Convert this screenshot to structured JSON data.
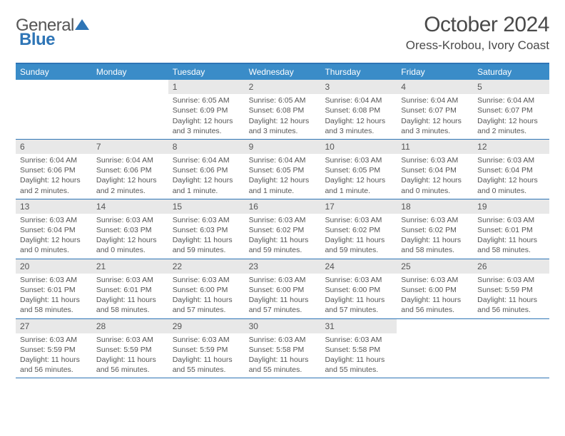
{
  "logo": {
    "text1": "General",
    "text2": "Blue"
  },
  "title": "October 2024",
  "location": "Oress-Krobou, Ivory Coast",
  "colors": {
    "header_bg": "#3a8cc8",
    "border": "#2e75b6",
    "daynum_bg": "#e8e8e8",
    "text": "#555555"
  },
  "day_names": [
    "Sunday",
    "Monday",
    "Tuesday",
    "Wednesday",
    "Thursday",
    "Friday",
    "Saturday"
  ],
  "weeks": [
    [
      {
        "n": "",
        "sr": "",
        "ss": "",
        "dl": ""
      },
      {
        "n": "",
        "sr": "",
        "ss": "",
        "dl": ""
      },
      {
        "n": "1",
        "sr": "Sunrise: 6:05 AM",
        "ss": "Sunset: 6:09 PM",
        "dl": "Daylight: 12 hours and 3 minutes."
      },
      {
        "n": "2",
        "sr": "Sunrise: 6:05 AM",
        "ss": "Sunset: 6:08 PM",
        "dl": "Daylight: 12 hours and 3 minutes."
      },
      {
        "n": "3",
        "sr": "Sunrise: 6:04 AM",
        "ss": "Sunset: 6:08 PM",
        "dl": "Daylight: 12 hours and 3 minutes."
      },
      {
        "n": "4",
        "sr": "Sunrise: 6:04 AM",
        "ss": "Sunset: 6:07 PM",
        "dl": "Daylight: 12 hours and 3 minutes."
      },
      {
        "n": "5",
        "sr": "Sunrise: 6:04 AM",
        "ss": "Sunset: 6:07 PM",
        "dl": "Daylight: 12 hours and 2 minutes."
      }
    ],
    [
      {
        "n": "6",
        "sr": "Sunrise: 6:04 AM",
        "ss": "Sunset: 6:06 PM",
        "dl": "Daylight: 12 hours and 2 minutes."
      },
      {
        "n": "7",
        "sr": "Sunrise: 6:04 AM",
        "ss": "Sunset: 6:06 PM",
        "dl": "Daylight: 12 hours and 2 minutes."
      },
      {
        "n": "8",
        "sr": "Sunrise: 6:04 AM",
        "ss": "Sunset: 6:06 PM",
        "dl": "Daylight: 12 hours and 1 minute."
      },
      {
        "n": "9",
        "sr": "Sunrise: 6:04 AM",
        "ss": "Sunset: 6:05 PM",
        "dl": "Daylight: 12 hours and 1 minute."
      },
      {
        "n": "10",
        "sr": "Sunrise: 6:03 AM",
        "ss": "Sunset: 6:05 PM",
        "dl": "Daylight: 12 hours and 1 minute."
      },
      {
        "n": "11",
        "sr": "Sunrise: 6:03 AM",
        "ss": "Sunset: 6:04 PM",
        "dl": "Daylight: 12 hours and 0 minutes."
      },
      {
        "n": "12",
        "sr": "Sunrise: 6:03 AM",
        "ss": "Sunset: 6:04 PM",
        "dl": "Daylight: 12 hours and 0 minutes."
      }
    ],
    [
      {
        "n": "13",
        "sr": "Sunrise: 6:03 AM",
        "ss": "Sunset: 6:04 PM",
        "dl": "Daylight: 12 hours and 0 minutes."
      },
      {
        "n": "14",
        "sr": "Sunrise: 6:03 AM",
        "ss": "Sunset: 6:03 PM",
        "dl": "Daylight: 12 hours and 0 minutes."
      },
      {
        "n": "15",
        "sr": "Sunrise: 6:03 AM",
        "ss": "Sunset: 6:03 PM",
        "dl": "Daylight: 11 hours and 59 minutes."
      },
      {
        "n": "16",
        "sr": "Sunrise: 6:03 AM",
        "ss": "Sunset: 6:02 PM",
        "dl": "Daylight: 11 hours and 59 minutes."
      },
      {
        "n": "17",
        "sr": "Sunrise: 6:03 AM",
        "ss": "Sunset: 6:02 PM",
        "dl": "Daylight: 11 hours and 59 minutes."
      },
      {
        "n": "18",
        "sr": "Sunrise: 6:03 AM",
        "ss": "Sunset: 6:02 PM",
        "dl": "Daylight: 11 hours and 58 minutes."
      },
      {
        "n": "19",
        "sr": "Sunrise: 6:03 AM",
        "ss": "Sunset: 6:01 PM",
        "dl": "Daylight: 11 hours and 58 minutes."
      }
    ],
    [
      {
        "n": "20",
        "sr": "Sunrise: 6:03 AM",
        "ss": "Sunset: 6:01 PM",
        "dl": "Daylight: 11 hours and 58 minutes."
      },
      {
        "n": "21",
        "sr": "Sunrise: 6:03 AM",
        "ss": "Sunset: 6:01 PM",
        "dl": "Daylight: 11 hours and 58 minutes."
      },
      {
        "n": "22",
        "sr": "Sunrise: 6:03 AM",
        "ss": "Sunset: 6:00 PM",
        "dl": "Daylight: 11 hours and 57 minutes."
      },
      {
        "n": "23",
        "sr": "Sunrise: 6:03 AM",
        "ss": "Sunset: 6:00 PM",
        "dl": "Daylight: 11 hours and 57 minutes."
      },
      {
        "n": "24",
        "sr": "Sunrise: 6:03 AM",
        "ss": "Sunset: 6:00 PM",
        "dl": "Daylight: 11 hours and 57 minutes."
      },
      {
        "n": "25",
        "sr": "Sunrise: 6:03 AM",
        "ss": "Sunset: 6:00 PM",
        "dl": "Daylight: 11 hours and 56 minutes."
      },
      {
        "n": "26",
        "sr": "Sunrise: 6:03 AM",
        "ss": "Sunset: 5:59 PM",
        "dl": "Daylight: 11 hours and 56 minutes."
      }
    ],
    [
      {
        "n": "27",
        "sr": "Sunrise: 6:03 AM",
        "ss": "Sunset: 5:59 PM",
        "dl": "Daylight: 11 hours and 56 minutes."
      },
      {
        "n": "28",
        "sr": "Sunrise: 6:03 AM",
        "ss": "Sunset: 5:59 PM",
        "dl": "Daylight: 11 hours and 56 minutes."
      },
      {
        "n": "29",
        "sr": "Sunrise: 6:03 AM",
        "ss": "Sunset: 5:59 PM",
        "dl": "Daylight: 11 hours and 55 minutes."
      },
      {
        "n": "30",
        "sr": "Sunrise: 6:03 AM",
        "ss": "Sunset: 5:58 PM",
        "dl": "Daylight: 11 hours and 55 minutes."
      },
      {
        "n": "31",
        "sr": "Sunrise: 6:03 AM",
        "ss": "Sunset: 5:58 PM",
        "dl": "Daylight: 11 hours and 55 minutes."
      },
      {
        "n": "",
        "sr": "",
        "ss": "",
        "dl": ""
      },
      {
        "n": "",
        "sr": "",
        "ss": "",
        "dl": ""
      }
    ]
  ]
}
